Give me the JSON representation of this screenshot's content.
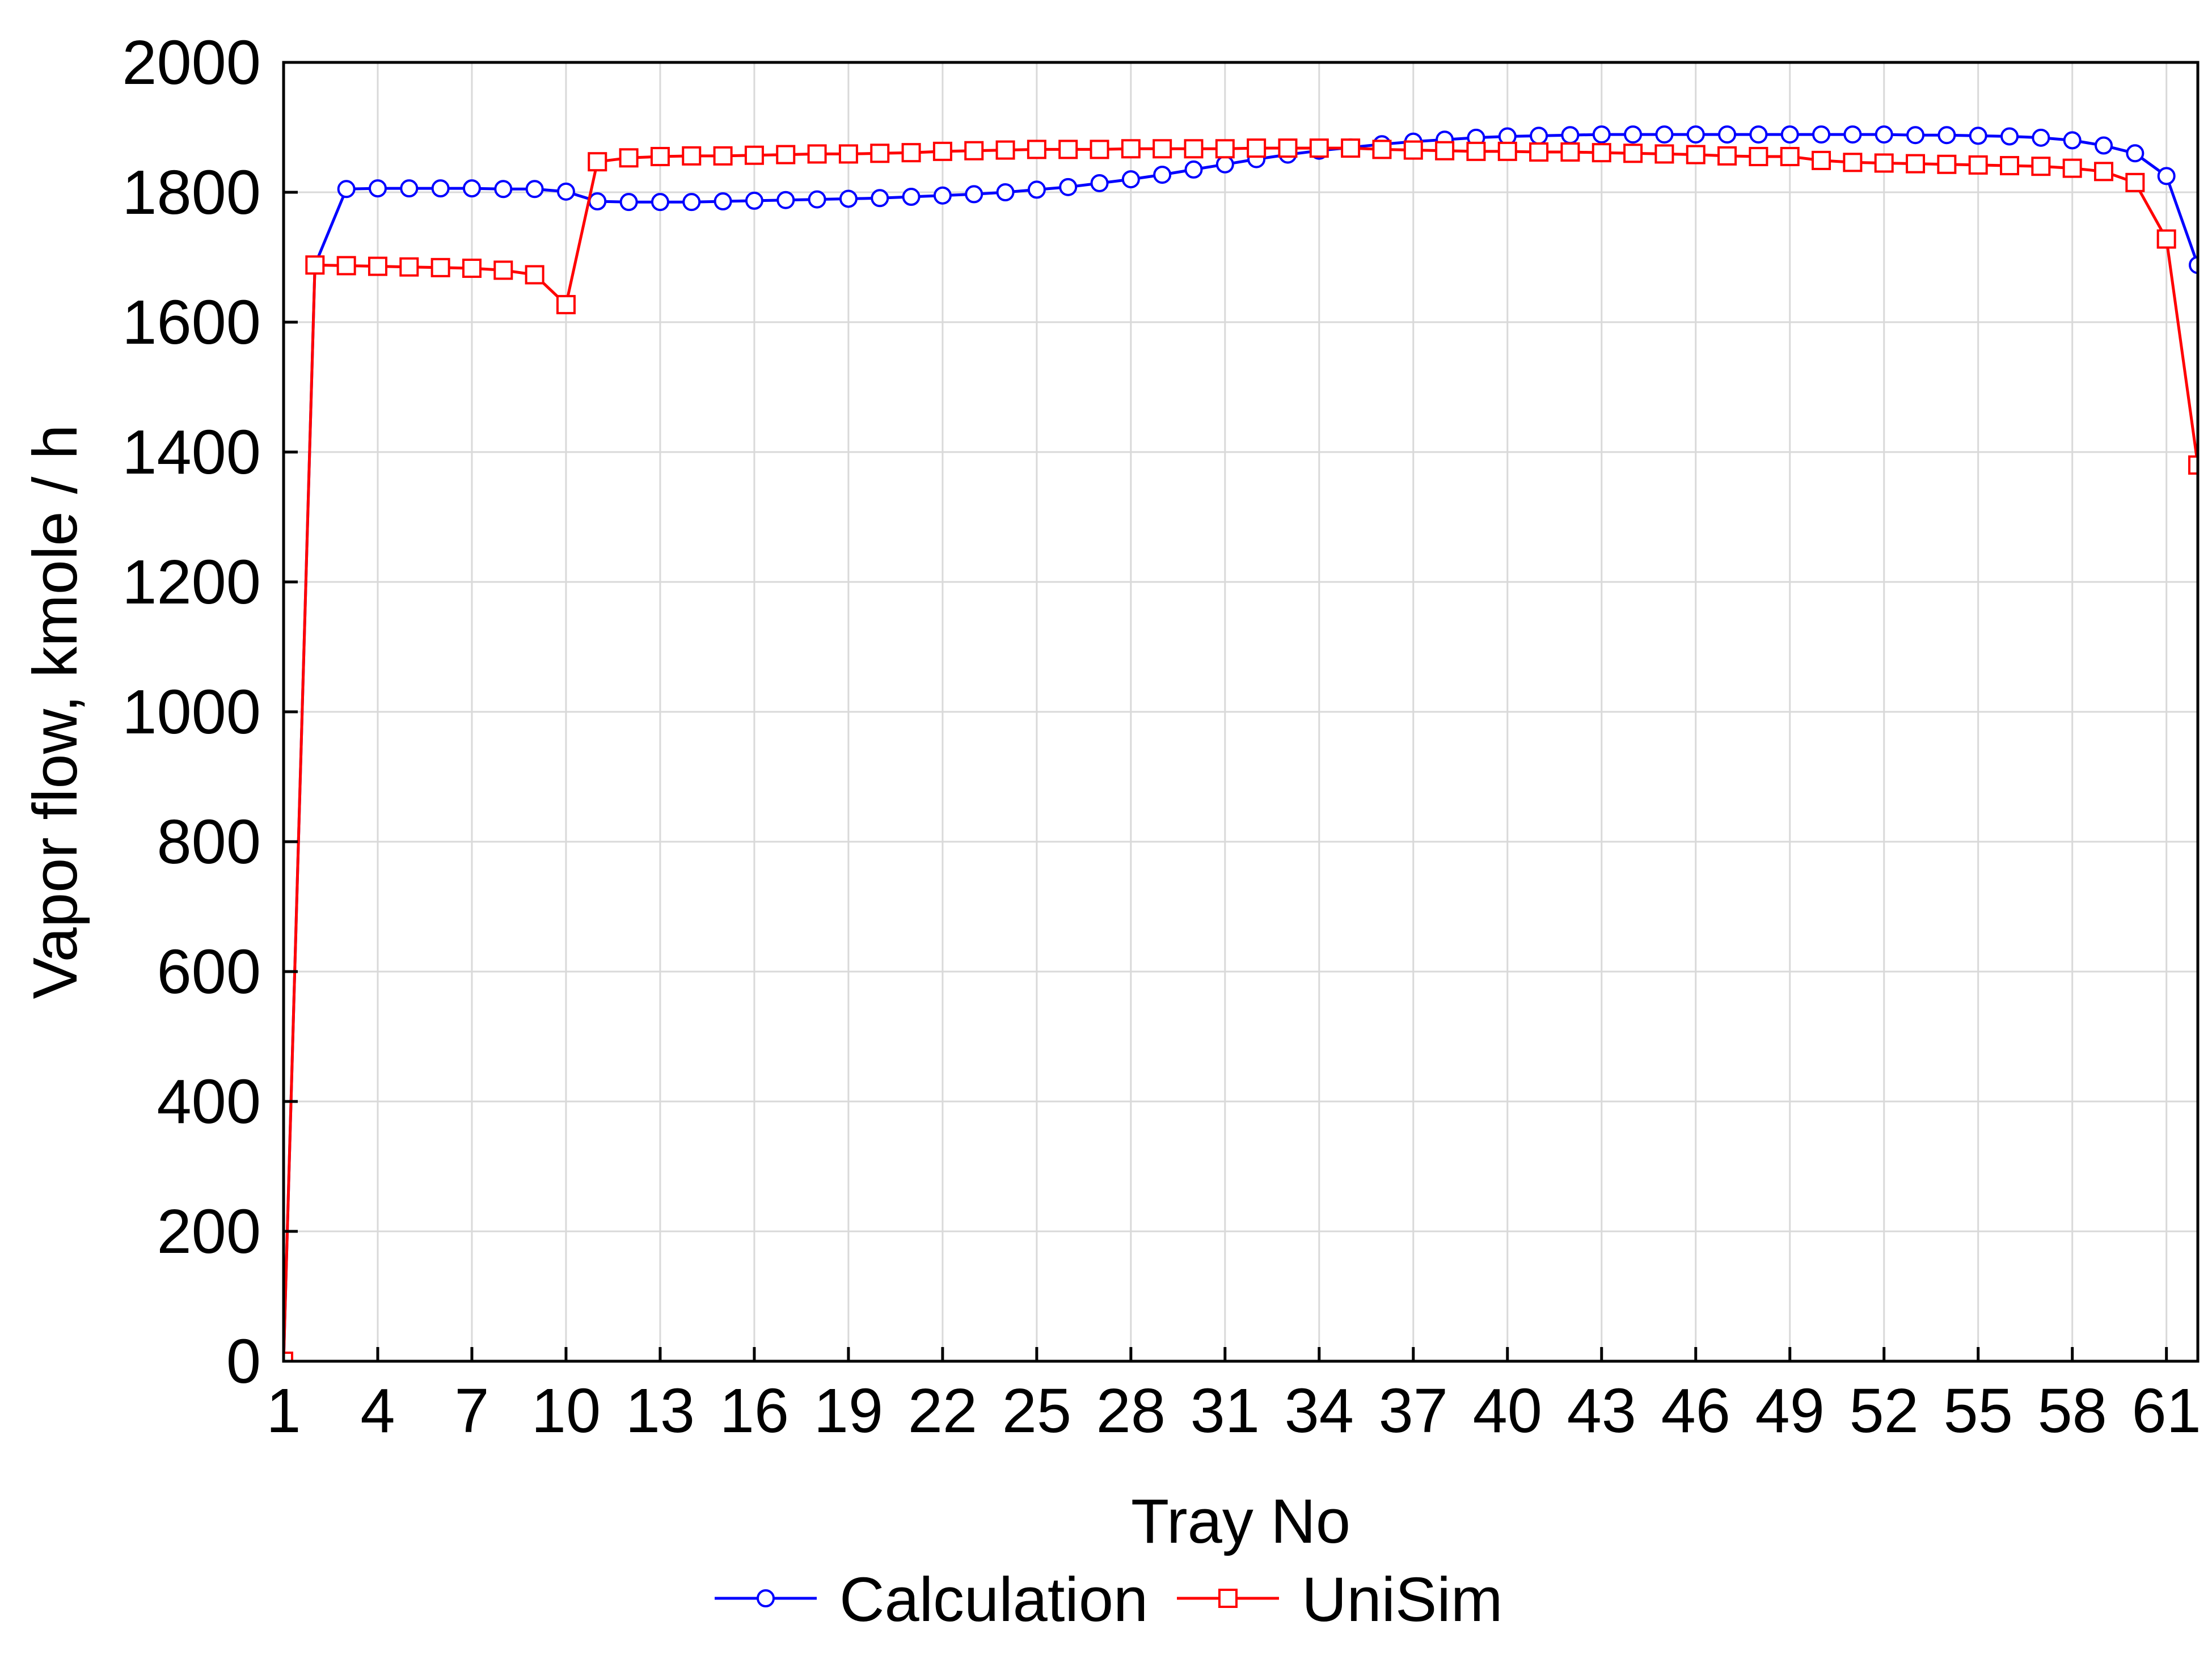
{
  "chart_data": {
    "type": "line",
    "title": "",
    "xlabel": "Tray No",
    "ylabel": "Vapor flow, kmole / h",
    "xlim": [
      1,
      62
    ],
    "ylim": [
      0,
      2000
    ],
    "grid": true,
    "legend_position": "bottom",
    "x_ticks": [
      1,
      4,
      7,
      10,
      13,
      16,
      19,
      22,
      25,
      28,
      31,
      34,
      37,
      40,
      43,
      46,
      49,
      52,
      55,
      58,
      61
    ],
    "y_ticks": [
      0,
      200,
      400,
      600,
      800,
      1000,
      1200,
      1400,
      1600,
      1800,
      2000
    ],
    "x": [
      1,
      2,
      3,
      4,
      5,
      6,
      7,
      8,
      9,
      10,
      11,
      12,
      13,
      14,
      15,
      16,
      17,
      18,
      19,
      20,
      21,
      22,
      23,
      24,
      25,
      26,
      27,
      28,
      29,
      30,
      31,
      32,
      33,
      34,
      35,
      36,
      37,
      38,
      39,
      40,
      41,
      42,
      43,
      44,
      45,
      46,
      47,
      48,
      49,
      50,
      51,
      52,
      53,
      54,
      55,
      56,
      57,
      58,
      59,
      60,
      61,
      62
    ],
    "series": [
      {
        "name": "Calculation",
        "color": "#0000ff",
        "marker": "circle",
        "values": [
          0,
          1688,
          1805,
          1806,
          1806,
          1806,
          1806,
          1805,
          1805,
          1801,
          1786,
          1785,
          1785,
          1785,
          1786,
          1787,
          1788,
          1789,
          1790,
          1791,
          1793,
          1795,
          1797,
          1800,
          1804,
          1808,
          1814,
          1820,
          1827,
          1835,
          1843,
          1851,
          1858,
          1864,
          1869,
          1874,
          1878,
          1881,
          1884,
          1886,
          1887,
          1888,
          1889,
          1889,
          1889,
          1889,
          1889,
          1889,
          1889,
          1889,
          1889,
          1889,
          1888,
          1888,
          1887,
          1886,
          1884,
          1880,
          1872,
          1860,
          1825,
          1688
        ]
      },
      {
        "name": "UniSim",
        "color": "#ff0000",
        "marker": "square",
        "values": [
          0,
          1688,
          1687,
          1686,
          1685,
          1684,
          1683,
          1680,
          1673,
          1627,
          1847,
          1853,
          1855,
          1856,
          1856,
          1857,
          1858,
          1859,
          1859,
          1860,
          1861,
          1863,
          1864,
          1865,
          1866,
          1866,
          1866,
          1867,
          1867,
          1867,
          1867,
          1868,
          1868,
          1868,
          1868,
          1866,
          1865,
          1864,
          1863,
          1863,
          1862,
          1862,
          1861,
          1860,
          1859,
          1858,
          1856,
          1855,
          1855,
          1849,
          1846,
          1845,
          1844,
          1843,
          1842,
          1841,
          1840,
          1837,
          1832,
          1815,
          1728,
          1380
        ]
      }
    ]
  }
}
